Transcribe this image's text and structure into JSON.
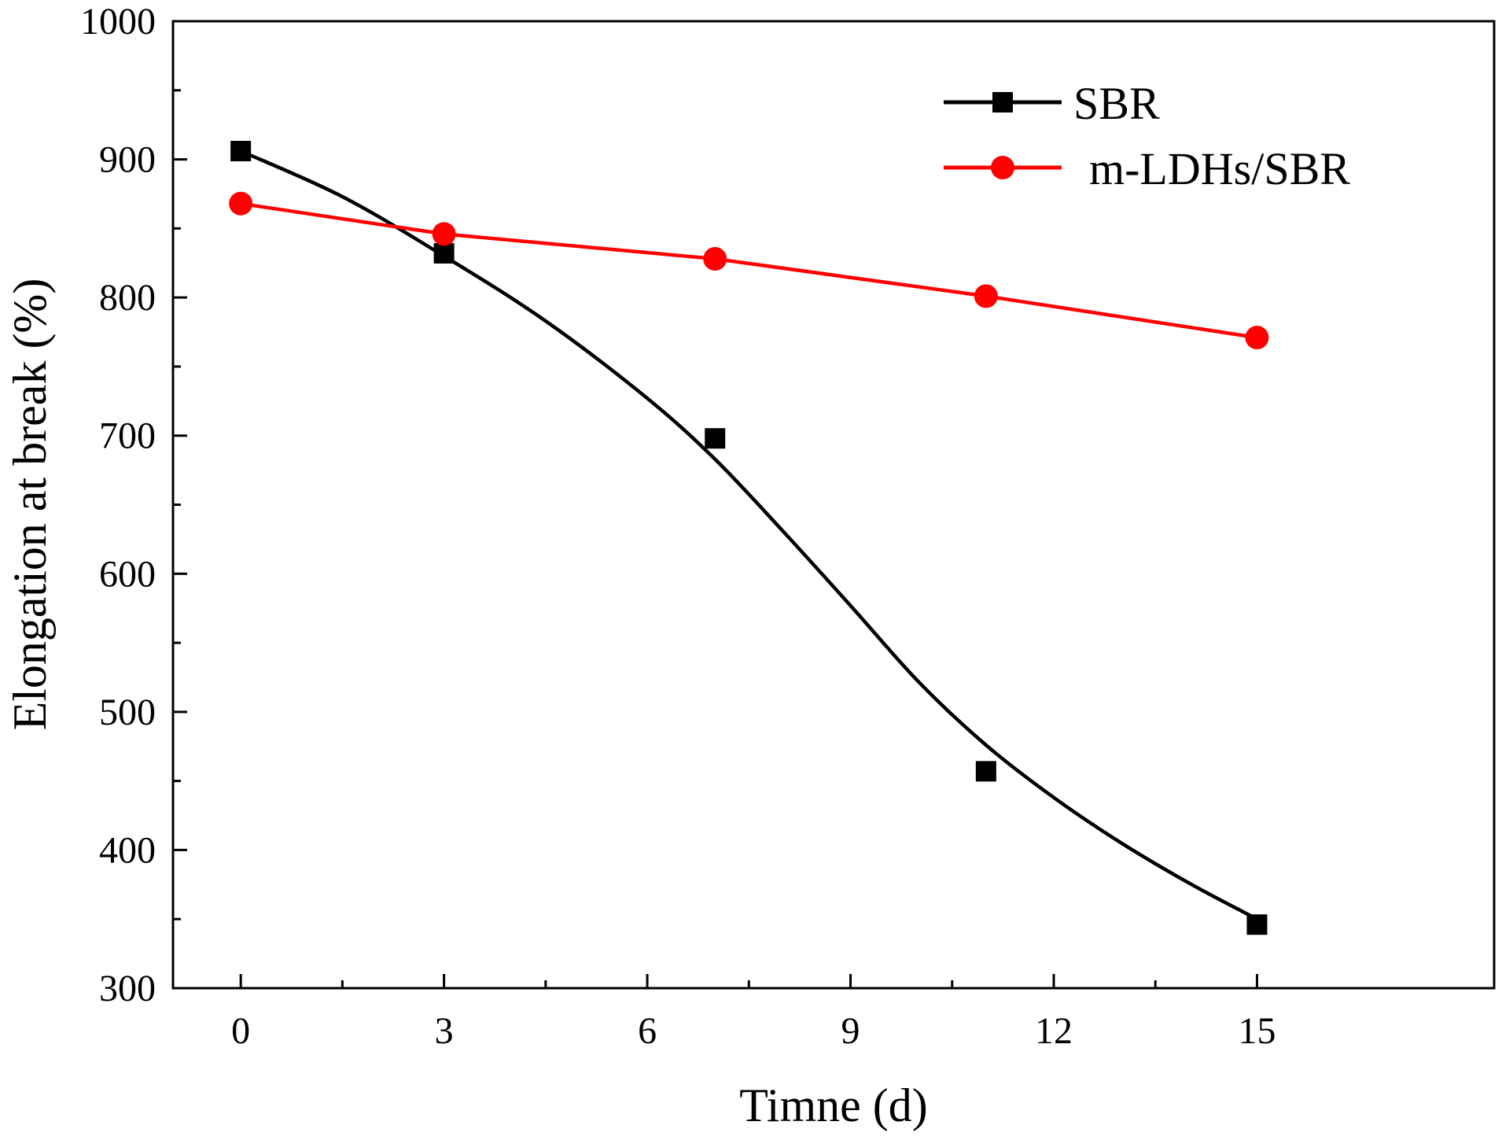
{
  "chart_data": {
    "type": "line",
    "title": "",
    "xlabel": "Timne  (d)",
    "ylabel": "Elongation at break  (%)",
    "xlim": [
      -1,
      18.5
    ],
    "ylim": [
      300,
      1000
    ],
    "xticks": [
      0,
      3,
      6,
      9,
      12,
      15
    ],
    "xtick_labels": [
      "0",
      "3",
      "6",
      "9",
      "12",
      "15"
    ],
    "yticks": [
      300,
      400,
      500,
      600,
      700,
      800,
      900,
      1000
    ],
    "ytick_labels": [
      "300",
      "400",
      "500",
      "600",
      "700",
      "800",
      "900",
      "1000"
    ],
    "grid": false,
    "legend_position": "top-right",
    "series": [
      {
        "name": "SBR",
        "color": "#000000",
        "marker": "square",
        "x": [
          0,
          3,
          7,
          11,
          15
        ],
        "values": [
          906,
          832,
          698,
          457,
          346
        ],
        "fit_curve": {
          "x": [
            0,
            1.5,
            3,
            4.5,
            6,
            7,
            8,
            9,
            10,
            11,
            12,
            13,
            14,
            15
          ],
          "y": [
            906,
            873,
            830,
            783,
            727,
            683,
            631,
            577,
            522,
            476,
            438,
            405,
            376,
            350
          ]
        }
      },
      {
        "name": "m-LDHs/SBR",
        "color": "#ff0000",
        "marker": "circle",
        "x": [
          0,
          3,
          7,
          11,
          15
        ],
        "values": [
          868,
          846,
          828,
          801,
          771
        ]
      }
    ]
  }
}
